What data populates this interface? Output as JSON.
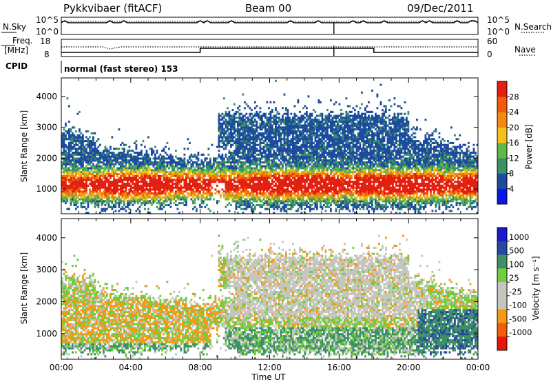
{
  "header": {
    "station": "Pykkvibaer (fitACF)",
    "beam": "Beam 00",
    "date": "09/Dec/2011"
  },
  "panels": {
    "nsky": {
      "label": "N.Sky",
      "left_ticks": [
        "10^5",
        "10^0"
      ],
      "right_ticks": [
        "10^5",
        "10^0"
      ],
      "right_label": "N.Search"
    },
    "freq": {
      "label_line1": "Freq.",
      "label_line2": "[MHz]",
      "left_ticks": [
        "18",
        "8"
      ],
      "right_ticks": [
        "60",
        "0"
      ],
      "right_label": "Nave"
    },
    "cpid": {
      "label": "CPID",
      "mode": "normal (fast stereo) 153"
    }
  },
  "colors": {
    "power": [
      "#0a16ea",
      "#1c4ba0",
      "#3c8f66",
      "#5fb84a",
      "#f5c01a",
      "#f38a10",
      "#f05c0c",
      "#e32010"
    ],
    "velocity": [
      "#e8160c",
      "#f05e0c",
      "#f39a18",
      "#c6c6be",
      "#c6c6be",
      "#6fcd3f",
      "#3f8f68",
      "#26499e",
      "#1a1acc"
    ]
  },
  "chart_data": [
    {
      "type": "heatmap",
      "name": "power",
      "ylabel": "Slant Range [km]",
      "ylim": [
        200,
        4600
      ],
      "yticks": [
        1000,
        2000,
        3000,
        4000
      ],
      "xlim": [
        0,
        24
      ],
      "colorbar": {
        "label": "Power [dB]",
        "range": [
          0,
          32
        ],
        "ticks": [
          4,
          8,
          12,
          16,
          20,
          24,
          28
        ]
      }
    },
    {
      "type": "heatmap",
      "name": "velocity",
      "ylabel": "Slant Range [km]",
      "ylim": [
        200,
        4600
      ],
      "yticks": [
        1000,
        2000,
        3000,
        4000
      ],
      "xlim": [
        0,
        24
      ],
      "colorbar": {
        "label": "Velocity [m s⁻¹]",
        "ticks": [
          "-1000",
          "-500",
          "-100",
          "-25",
          "25",
          "100",
          "500",
          "1000"
        ]
      }
    }
  ],
  "xaxis": {
    "label": "Time UT",
    "ticks": [
      "00:00",
      "04:00",
      "08:00",
      "12:00",
      "16:00",
      "20:00",
      "00:00"
    ]
  }
}
